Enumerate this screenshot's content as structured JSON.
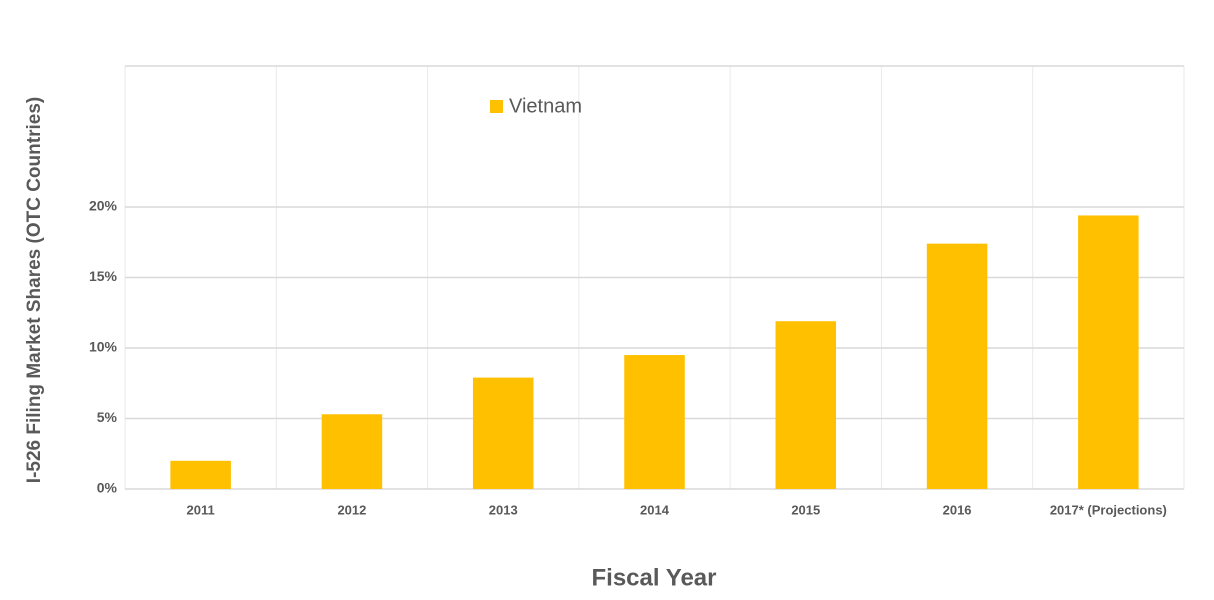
{
  "chart_data": {
    "type": "bar",
    "x_label": "Fiscal Year",
    "y_label": "I-526 Filing Market Shares (OTC Countries)",
    "categories": [
      "2011",
      "2012",
      "2013",
      "2014",
      "2015",
      "2016",
      "2017* (Projections)"
    ],
    "series": [
      {
        "name": "Vietnam",
        "color": "#ffc000",
        "values": [
          2,
          5.3,
          7.9,
          9.5,
          11.9,
          17.4,
          19.4
        ]
      }
    ],
    "ylim": [
      0,
      30
    ],
    "yticks": [
      {
        "value": 0,
        "label": "0%"
      },
      {
        "value": 5,
        "label": "5%"
      },
      {
        "value": 10,
        "label": "10%"
      },
      {
        "value": 15,
        "label": "15%"
      },
      {
        "value": 20,
        "label": "20%"
      }
    ],
    "grid": true,
    "legend": "top"
  }
}
